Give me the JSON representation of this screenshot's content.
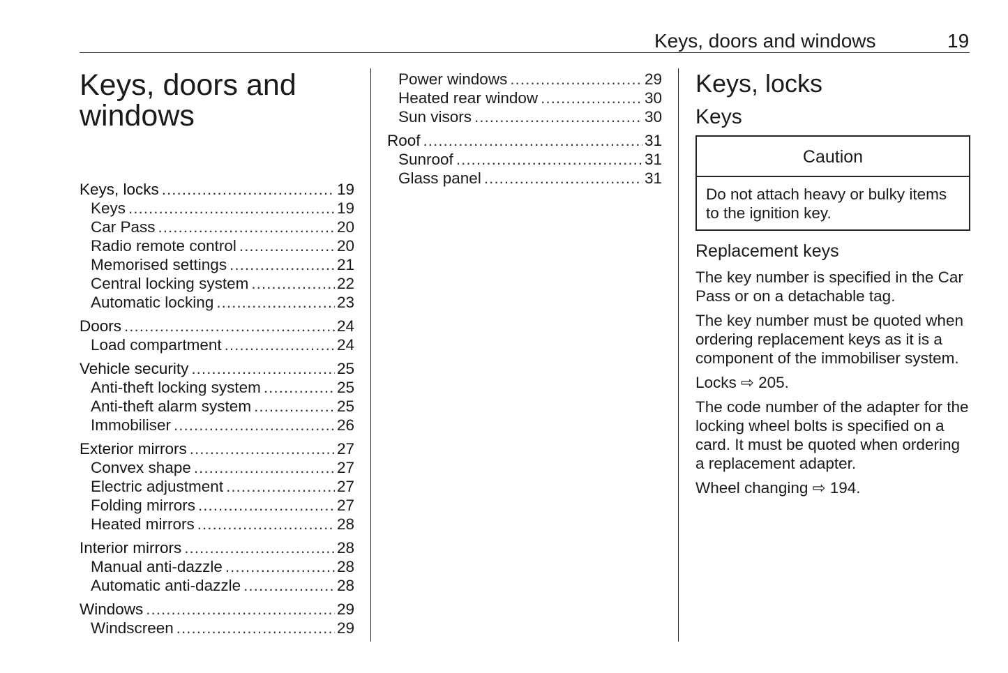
{
  "header": {
    "title": "Keys, doors and windows",
    "page_number": "19"
  },
  "chapter_title": "Keys, doors and windows",
  "toc_left": [
    {
      "label": "Keys, locks",
      "page": "19",
      "items": [
        {
          "label": "Keys",
          "page": "19"
        },
        {
          "label": "Car Pass",
          "page": "20"
        },
        {
          "label": "Radio remote control",
          "page": "20"
        },
        {
          "label": "Memorised settings",
          "page": "21"
        },
        {
          "label": "Central locking system",
          "page": "22"
        },
        {
          "label": "Automatic locking",
          "page": "23"
        }
      ]
    },
    {
      "label": "Doors",
      "page": "24",
      "items": [
        {
          "label": "Load compartment",
          "page": "24"
        }
      ]
    },
    {
      "label": "Vehicle security",
      "page": "25",
      "items": [
        {
          "label": "Anti-theft locking system",
          "page": "25"
        },
        {
          "label": "Anti-theft alarm system",
          "page": "25"
        },
        {
          "label": "Immobiliser",
          "page": "26"
        }
      ]
    },
    {
      "label": "Exterior mirrors",
      "page": "27",
      "items": [
        {
          "label": "Convex shape",
          "page": "27"
        },
        {
          "label": "Electric adjustment",
          "page": "27"
        },
        {
          "label": "Folding mirrors",
          "page": "27"
        },
        {
          "label": "Heated mirrors",
          "page": "28"
        }
      ]
    },
    {
      "label": "Interior mirrors",
      "page": "28",
      "items": [
        {
          "label": "Manual anti-dazzle",
          "page": "28"
        },
        {
          "label": "Automatic anti-dazzle",
          "page": "28"
        }
      ]
    },
    {
      "label": "Windows",
      "page": "29",
      "items": [
        {
          "label": "Windscreen",
          "page": "29"
        }
      ]
    }
  ],
  "toc_middle": [
    {
      "label": null,
      "page": null,
      "items": [
        {
          "label": "Power windows",
          "page": "29"
        },
        {
          "label": "Heated rear window",
          "page": "30"
        },
        {
          "label": "Sun visors",
          "page": "30"
        }
      ]
    },
    {
      "label": "Roof",
      "page": "31",
      "items": [
        {
          "label": "Sunroof",
          "page": "31"
        },
        {
          "label": "Glass panel",
          "page": "31"
        }
      ]
    }
  ],
  "content": {
    "section_title": "Keys, locks",
    "subsection_title": "Keys",
    "caution": {
      "title": "Caution",
      "text": "Do not attach heavy or bulky items to the ignition key."
    },
    "replacement_title": "Replacement keys",
    "paragraphs": [
      "The key number is specified in the Car Pass or on a detachable tag.",
      "The key number must be quoted when ordering replacement keys as it is a component of the immobiliser system.",
      "Locks ⇨ 205.",
      "The code number of the adapter for the locking wheel bolts is specified on a card. It must be quoted when ordering a replacement adapter.",
      "Wheel changing ⇨ 194."
    ]
  }
}
